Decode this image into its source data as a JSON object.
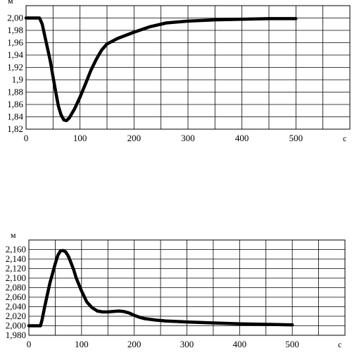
{
  "chart_data": [
    {
      "type": "line",
      "title": "",
      "y_unit": "м",
      "x_unit": "с",
      "xlim": [
        0,
        600
      ],
      "ylim": [
        1.82,
        2.02
      ],
      "x_ticks": [
        "0",
        "100",
        "200",
        "300",
        "400",
        "500"
      ],
      "y_ticks": [
        "1,82",
        "1,84",
        "1,86",
        "1,88",
        "1,9",
        "1,92",
        "1,94",
        "1,96",
        "1,98",
        "2,00"
      ],
      "grid": true,
      "series": [
        {
          "x": [
            0,
            25,
            30,
            35,
            40,
            45,
            50,
            55,
            60,
            65,
            70,
            75,
            80,
            90,
            100,
            110,
            120,
            130,
            140,
            150,
            170,
            200,
            230,
            260,
            300,
            350,
            400,
            450,
            500
          ],
          "y": [
            2.0,
            2.0,
            1.99,
            1.97,
            1.95,
            1.93,
            1.905,
            1.88,
            1.857,
            1.843,
            1.835,
            1.834,
            1.838,
            1.853,
            1.872,
            1.893,
            1.915,
            1.933,
            1.948,
            1.958,
            1.967,
            1.977,
            1.986,
            1.992,
            1.995,
            1.997,
            1.998,
            1.999,
            1.999
          ]
        }
      ]
    },
    {
      "type": "line",
      "title": "",
      "y_unit": "м",
      "x_unit": "с",
      "xlim": [
        0,
        600
      ],
      "ylim": [
        1.98,
        2.18
      ],
      "x_ticks": [
        "0",
        "100",
        "200",
        "300",
        "400",
        "500"
      ],
      "y_ticks": [
        "1,980",
        "2,000",
        "2,020",
        "2,040",
        "2,060",
        "2,080",
        "2,100",
        "2,120",
        "2,140",
        "2,160"
      ],
      "grid": true,
      "series": [
        {
          "x": [
            0,
            22,
            25,
            30,
            35,
            40,
            45,
            50,
            55,
            60,
            65,
            70,
            75,
            80,
            85,
            90,
            100,
            110,
            120,
            130,
            140,
            150,
            160,
            170,
            180,
            190,
            200,
            210,
            220,
            240,
            260,
            280,
            300,
            350,
            400,
            450,
            500
          ],
          "y": [
            2.0,
            2.0,
            2.012,
            2.04,
            2.065,
            2.09,
            2.11,
            2.13,
            2.148,
            2.157,
            2.158,
            2.155,
            2.146,
            2.132,
            2.118,
            2.1,
            2.073,
            2.05,
            2.038,
            2.031,
            2.029,
            2.029,
            2.03,
            2.031,
            2.03,
            2.027,
            2.022,
            2.018,
            2.015,
            2.012,
            2.01,
            2.009,
            2.008,
            2.006,
            2.004,
            2.003,
            2.002
          ]
        }
      ]
    }
  ]
}
